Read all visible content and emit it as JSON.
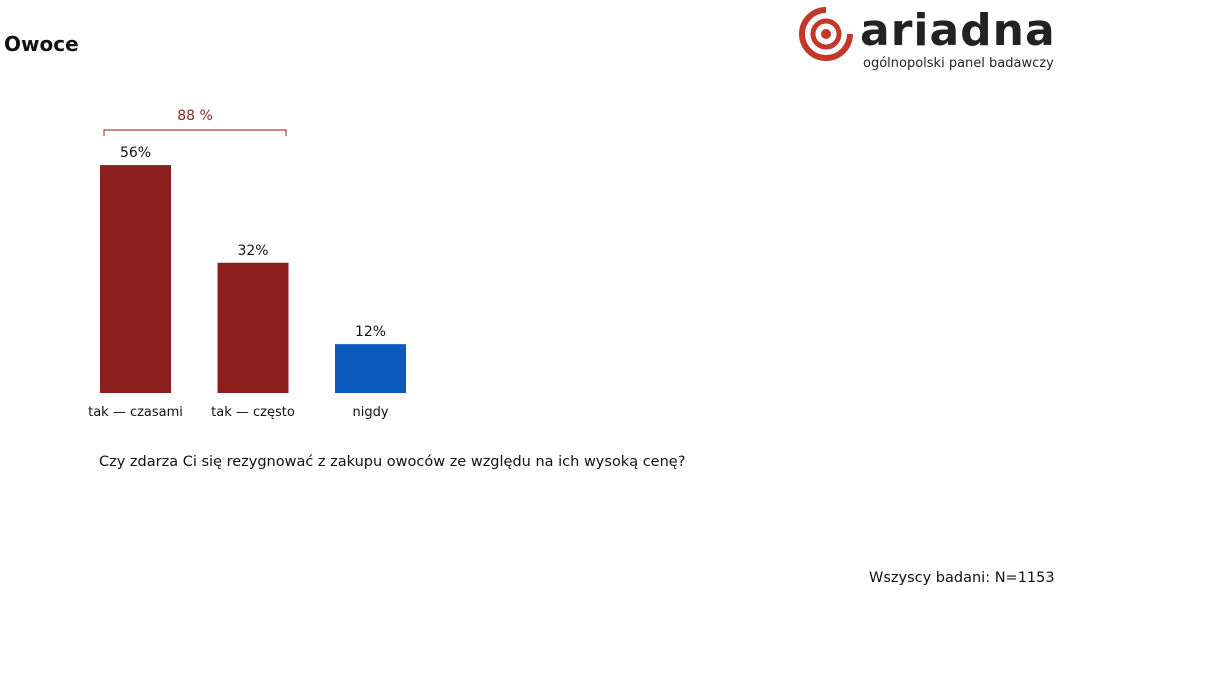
{
  "page": {
    "title": "Owoce",
    "question": "Czy zdarza Ci się rezygnować z zakupu owoców ze względu na ich wysoką cenę?",
    "footer": "Wszyscy badani: N=1153"
  },
  "logo": {
    "word": "ariadna",
    "subtitle": "ogólnopolski panel badawczy",
    "color": "#c0392b"
  },
  "chart_data": {
    "type": "bar",
    "categories": [
      "tak — czasami",
      "tak — często",
      "nigdy"
    ],
    "values": [
      56,
      32,
      12
    ],
    "value_labels": [
      "56%",
      "32%",
      "12%"
    ],
    "colors": [
      "#8b1f1c",
      "#8b1f1c",
      "#0a5bbd"
    ],
    "unit": "%",
    "bracket": {
      "spans": [
        "tak — czasami",
        "tak — często"
      ],
      "label": "88 %",
      "color": "#b0403a"
    },
    "ylim": [
      0,
      60
    ],
    "grid": false
  }
}
